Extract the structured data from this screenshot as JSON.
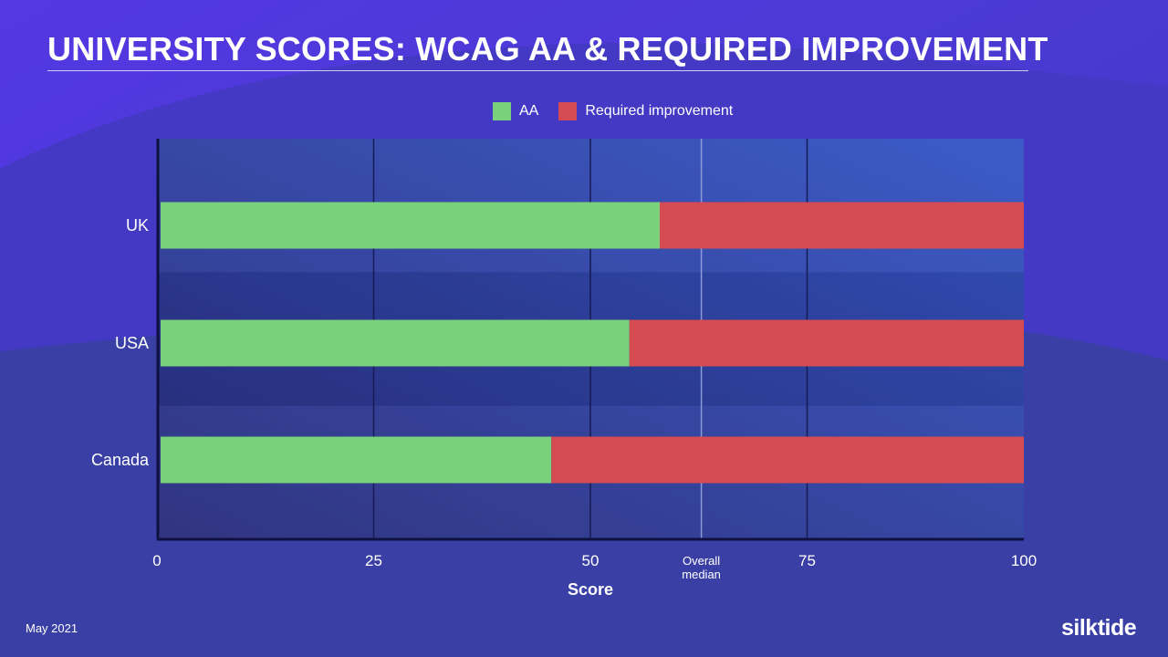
{
  "title": "UNIVERSITY SCORES: WCAG AA & REQUIRED IMPROVEMENT",
  "footer": {
    "date": "May 2021",
    "brand": "silktide"
  },
  "colors": {
    "aa": "#79d17c",
    "required": "#d44b52",
    "median_line": "#8c9ad8"
  },
  "chart_data": {
    "type": "bar",
    "orientation": "horizontal",
    "stacked": true,
    "categories": [
      "UK",
      "USA",
      "Canada"
    ],
    "series": [
      {
        "name": "AA",
        "values": [
          58,
          54.5,
          45.5
        ]
      },
      {
        "name": "Required improvement",
        "values": [
          42,
          45.5,
          54.5
        ]
      }
    ],
    "xlim": [
      0,
      100
    ],
    "xticks": [
      0,
      25,
      50,
      75,
      100
    ],
    "xlabel": "Score",
    "ylabel": "",
    "legend": "top-center",
    "grid": true,
    "annotations": [
      {
        "label_lines": [
          "Overall",
          "median"
        ],
        "x": 62.8
      }
    ]
  }
}
